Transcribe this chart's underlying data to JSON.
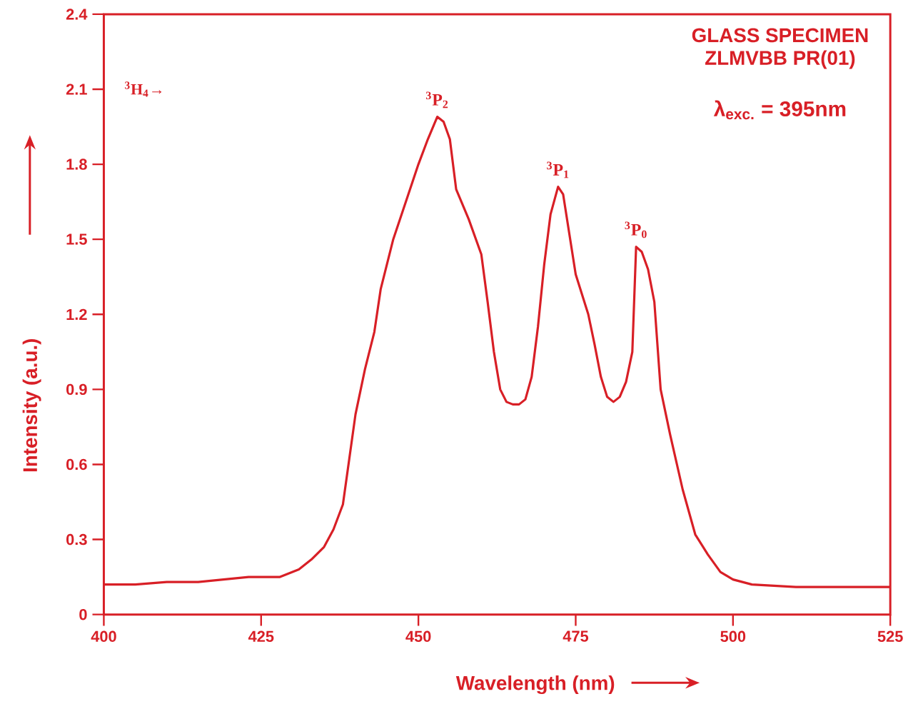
{
  "chart_data": {
    "type": "line",
    "title": "GLASS SPECIMEN",
    "subtitle": "ZLMVBB PR(01)",
    "xlabel": "Wavelength (nm)",
    "ylabel": "Intensity (a.u.)",
    "annotations": [
      "λ$_{exc.}$ = 395nm",
      "$^{3}$H$_{4}$→",
      {
        "text": "$^{3}$P$_{2}$",
        "x": 453,
        "y": 1.99
      },
      {
        "text": "$^{3}$P$_{1}$",
        "x": 472.2,
        "y": 1.71
      },
      {
        "text": "$^{3}$P$_{0}$",
        "x": 484.6,
        "y": 1.47
      }
    ],
    "x": [
      400,
      405,
      410,
      415,
      423,
      428,
      431,
      433,
      435,
      436.5,
      438,
      439,
      440,
      441.5,
      443,
      444,
      446,
      448,
      450,
      451.5,
      453,
      454,
      455,
      456,
      458,
      460,
      461,
      462,
      463,
      464,
      465,
      466,
      467,
      468,
      469,
      470,
      471,
      472.2,
      473,
      474,
      475,
      477,
      478,
      479,
      480,
      481,
      482,
      483,
      484,
      484.6,
      485.5,
      486.5,
      487.5,
      488.5,
      490,
      492,
      494,
      496,
      498,
      500,
      503,
      510,
      525
    ],
    "series": [
      {
        "color": "#d81f26",
        "values": [
          0.12,
          0.12,
          0.13,
          0.13,
          0.15,
          0.15,
          0.18,
          0.22,
          0.27,
          0.34,
          0.44,
          0.62,
          0.8,
          0.98,
          1.13,
          1.3,
          1.5,
          1.65,
          1.8,
          1.9,
          1.99,
          1.97,
          1.9,
          1.7,
          1.58,
          1.44,
          1.25,
          1.05,
          0.9,
          0.85,
          0.84,
          0.84,
          0.86,
          0.95,
          1.15,
          1.4,
          1.6,
          1.71,
          1.68,
          1.52,
          1.36,
          1.2,
          1.08,
          0.95,
          0.87,
          0.85,
          0.87,
          0.93,
          1.05,
          1.47,
          1.45,
          1.38,
          1.25,
          0.9,
          0.72,
          0.5,
          0.32,
          0.24,
          0.17,
          0.14,
          0.12,
          0.11,
          0.11
        ]
      }
    ],
    "xlim": [
      400,
      525
    ],
    "ylim": [
      0,
      2.4
    ],
    "xticks": [
      400,
      425,
      450,
      475,
      500,
      525
    ],
    "yticks": [
      0,
      0.3,
      0.6,
      0.9,
      1.2,
      1.5,
      1.8,
      2.1,
      2.4
    ]
  }
}
